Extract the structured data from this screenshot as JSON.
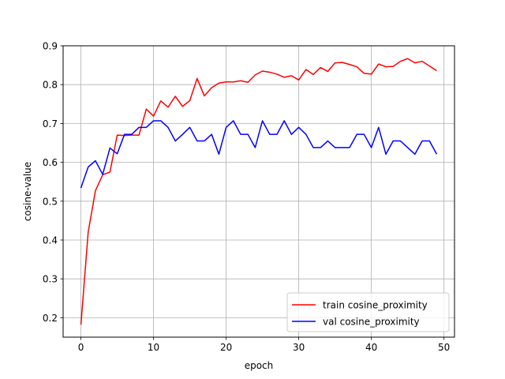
{
  "chart_data": {
    "type": "line",
    "title": "",
    "xlabel": "epoch",
    "ylabel": "cosine-value",
    "xlim": [
      -2.45,
      51.45
    ],
    "ylim": [
      0.15,
      0.9
    ],
    "xticks": [
      0,
      10,
      20,
      30,
      40,
      50
    ],
    "yticks": [
      0.2,
      0.3,
      0.4,
      0.5,
      0.6,
      0.7,
      0.8,
      0.9
    ],
    "grid": true,
    "legend_position": "lower-right",
    "x": [
      0,
      1,
      2,
      3,
      4,
      5,
      6,
      7,
      8,
      9,
      10,
      11,
      12,
      13,
      14,
      15,
      16,
      17,
      18,
      19,
      20,
      21,
      22,
      23,
      24,
      25,
      26,
      27,
      28,
      29,
      30,
      31,
      32,
      33,
      34,
      35,
      36,
      37,
      38,
      39,
      40,
      41,
      42,
      43,
      44,
      45,
      46,
      47,
      48,
      49
    ],
    "series": [
      {
        "name": "train cosine_proximity",
        "color": "#ff0000",
        "values": [
          0.182,
          0.42,
          0.527,
          0.568,
          0.575,
          0.67,
          0.669,
          0.67,
          0.67,
          0.737,
          0.719,
          0.758,
          0.742,
          0.77,
          0.744,
          0.759,
          0.816,
          0.771,
          0.792,
          0.804,
          0.807,
          0.807,
          0.81,
          0.806,
          0.825,
          0.835,
          0.832,
          0.827,
          0.819,
          0.823,
          0.812,
          0.839,
          0.826,
          0.844,
          0.834,
          0.856,
          0.857,
          0.852,
          0.846,
          0.829,
          0.827,
          0.853,
          0.846,
          0.847,
          0.86,
          0.867,
          0.856,
          0.86,
          0.848,
          0.836
        ]
      },
      {
        "name": "val cosine_proximity",
        "color": "#0000ff",
        "values": [
          0.534,
          0.588,
          0.604,
          0.569,
          0.637,
          0.622,
          0.672,
          0.672,
          0.69,
          0.69,
          0.707,
          0.707,
          0.69,
          0.655,
          0.672,
          0.69,
          0.655,
          0.655,
          0.672,
          0.621,
          0.69,
          0.707,
          0.672,
          0.672,
          0.638,
          0.707,
          0.672,
          0.672,
          0.707,
          0.672,
          0.69,
          0.672,
          0.638,
          0.638,
          0.655,
          0.638,
          0.638,
          0.638,
          0.672,
          0.672,
          0.638,
          0.69,
          0.621,
          0.655,
          0.655,
          0.638,
          0.621,
          0.655,
          0.655,
          0.621
        ]
      }
    ]
  }
}
